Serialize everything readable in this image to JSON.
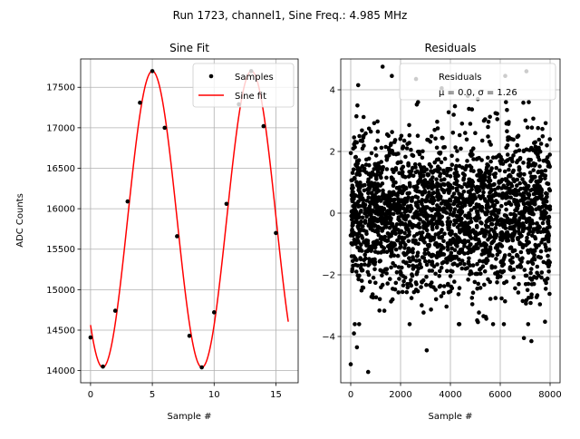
{
  "figure": {
    "suptitle": "Run 1723, channel1, Sine Freq.: 4.985 MHz"
  },
  "chart_data": [
    {
      "type": "scatter",
      "title": "Sine Fit",
      "xlabel": "Sample #",
      "ylabel": "ADC Counts",
      "xlim": [
        -0.8,
        16.8
      ],
      "ylim": [
        13850,
        17850
      ],
      "xticks": [
        0,
        5,
        10,
        15
      ],
      "yticks": [
        14000,
        14500,
        15000,
        15500,
        16000,
        16500,
        17000,
        17500
      ],
      "grid": true,
      "legend_position": "top-right",
      "legend": [
        "Samples",
        "Sine fit"
      ],
      "series": [
        {
          "name": "Samples",
          "kind": "points",
          "color": "#000000",
          "x": [
            0,
            1,
            2,
            3,
            4,
            5,
            6,
            7,
            8,
            9,
            10,
            11,
            12,
            13,
            14,
            15
          ],
          "y": [
            14410,
            14050,
            14740,
            16090,
            17310,
            17700,
            17000,
            15660,
            14430,
            14040,
            14720,
            16060,
            17290,
            17700,
            17020,
            15700
          ]
        },
        {
          "name": "Sine fit",
          "kind": "line",
          "color": "#ff0000",
          "x_range": [
            0,
            16
          ],
          "offset": 15870,
          "amplitude": 1830,
          "period": 8.02,
          "peak_at": 5.0
        }
      ]
    },
    {
      "type": "scatter",
      "title": "Residuals",
      "xlabel": "Sample #",
      "ylabel": "",
      "xlim": [
        -400,
        8400
      ],
      "ylim": [
        -5.5,
        5.0
      ],
      "xticks": [
        0,
        2000,
        4000,
        6000,
        8000
      ],
      "yticks": [
        -4,
        -2,
        0,
        2,
        4
      ],
      "grid": true,
      "legend_position": "top-right",
      "legend": [
        "Residuals",
        "μ = 0.0, σ = 1.26"
      ],
      "series": [
        {
          "name": "Residuals",
          "kind": "points",
          "color": "#000000",
          "n": 8000,
          "mean": 0.0,
          "sigma": 1.26,
          "x_range": [
            0,
            8000
          ],
          "highlighted_points": [
            {
              "x": 0,
              "y": -4.9
            },
            {
              "x": 130,
              "y": -3.9
            },
            {
              "x": 250,
              "y": -4.35
            },
            {
              "x": 700,
              "y": -5.15
            },
            {
              "x": 3050,
              "y": -4.45
            },
            {
              "x": 6950,
              "y": -4.05
            },
            {
              "x": 7250,
              "y": -4.15
            },
            {
              "x": 300,
              "y": 4.15
            },
            {
              "x": 1280,
              "y": 4.75
            },
            {
              "x": 1650,
              "y": 4.45
            },
            {
              "x": 2620,
              "y": 4.35
            },
            {
              "x": 3650,
              "y": 4.05
            },
            {
              "x": 6200,
              "y": 4.45
            },
            {
              "x": 7050,
              "y": 4.6
            },
            {
              "x": 5100,
              "y": 3.7
            },
            {
              "x": 4700,
              "y": 3.8
            }
          ]
        }
      ]
    }
  ]
}
